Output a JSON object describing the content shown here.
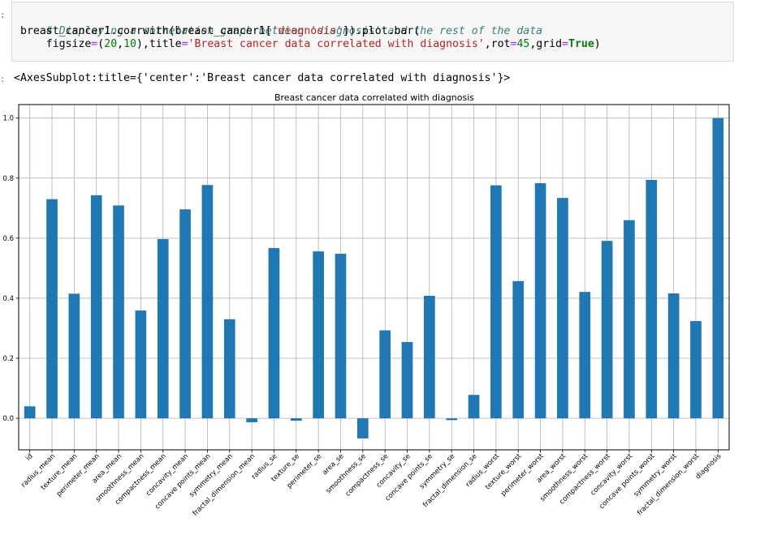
{
  "notebook": {
    "input_prompt": ":",
    "output_prompt": ":",
    "code_line_1": "# Displaying a correlation graph between 'diagnosis' and the rest of the data",
    "code_line_2": {
      "a": "breast_cancer1.corrwith(breast_cancer1[",
      "b": "'diagnosis'",
      "c": "]).plot.bar("
    },
    "code_line_3": {
      "a": "    figsize",
      "eq1": "=",
      "b": "(",
      "n1": "20",
      "c": ",",
      "n2": "10",
      "d": "),title",
      "eq2": "=",
      "s": "'Breast cancer data correlated with diagnosis'",
      "e": ",rot",
      "eq3": "=",
      "n3": "45",
      "f": ",grid",
      "eq4": "=",
      "kw": "True",
      "g": ")"
    },
    "output_text": "<AxesSubplot:title={'center':'Breast cancer data correlated with diagnosis'}>"
  },
  "chart_data": {
    "type": "bar",
    "title": "Breast cancer data correlated with diagnosis",
    "xlabel": "",
    "ylabel": "",
    "ylim": [
      -0.105,
      1.045
    ],
    "yticks": [
      0.0,
      0.2,
      0.4,
      0.6,
      0.8,
      1.0
    ],
    "ytick_labels": [
      "0.0",
      "0.2",
      "0.4",
      "0.6",
      "0.8",
      "1.0"
    ],
    "grid": true,
    "bar_color": "#1f77b4",
    "categories": [
      "id",
      "radius_mean",
      "texture_mean",
      "perimeter_mean",
      "area_mean",
      "smoothness_mean",
      "compactness_mean",
      "concavity_mean",
      "concave points_mean",
      "symmetry_mean",
      "fractal_dimension_mean",
      "radius_se",
      "texture_se",
      "perimeter_se",
      "area_se",
      "smoothness_se",
      "compactness_se",
      "concavity_se",
      "concave points_se",
      "symmetry_se",
      "fractal_dimension_se",
      "radius_worst",
      "texture_worst",
      "perimeter_worst",
      "area_worst",
      "smoothness_worst",
      "compactness_worst",
      "concavity_worst",
      "concave points_worst",
      "symmetry_worst",
      "fractal_dimension_worst",
      "diagnosis"
    ],
    "values": [
      0.04,
      0.73,
      0.415,
      0.743,
      0.709,
      0.359,
      0.597,
      0.696,
      0.777,
      0.33,
      -0.013,
      0.567,
      -0.008,
      0.556,
      0.548,
      -0.067,
      0.293,
      0.254,
      0.408,
      -0.006,
      0.078,
      0.776,
      0.457,
      0.783,
      0.734,
      0.421,
      0.591,
      0.66,
      0.794,
      0.416,
      0.324,
      1.0
    ]
  }
}
